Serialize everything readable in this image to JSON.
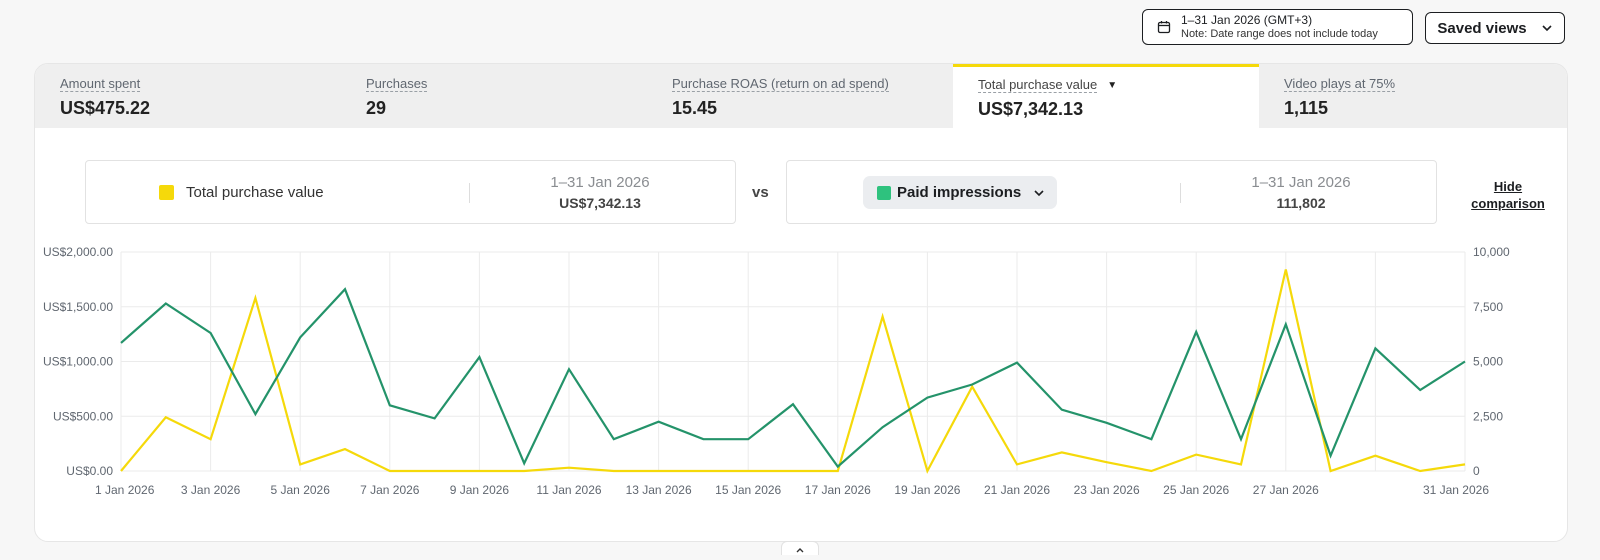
{
  "date_picker": {
    "range": "1–31 Jan 2026 (GMT+3)",
    "note": "Note: Date range does not include today"
  },
  "saved_views": {
    "label": "Saved views"
  },
  "metrics": [
    {
      "label": "Amount spent",
      "value": "US$475.22"
    },
    {
      "label": "Purchases",
      "value": "29"
    },
    {
      "label": "Purchase ROAS (return on ad spend)",
      "value": "15.45"
    },
    {
      "label": "Total purchase value",
      "value": "US$7,342.13"
    },
    {
      "label": "Video plays at 75%",
      "value": "1,115"
    }
  ],
  "comparison": {
    "primary": {
      "name": "Total purchase value",
      "range": "1–31 Jan 2026",
      "value": "US$7,342.13",
      "color": "#f5d90a"
    },
    "vs_label": "vs",
    "secondary": {
      "name": "Paid impressions",
      "range": "1–31 Jan 2026",
      "value": "111,802",
      "color": "#2ec27e"
    },
    "hide_link": [
      "Hide",
      "comparison"
    ]
  },
  "chart_data": {
    "type": "line",
    "x": [
      "1 Jan",
      "2 Jan",
      "3 Jan",
      "4 Jan",
      "5 Jan",
      "6 Jan",
      "7 Jan",
      "8 Jan",
      "9 Jan",
      "10 Jan",
      "11 Jan",
      "12 Jan",
      "13 Jan",
      "14 Jan",
      "15 Jan",
      "16 Jan",
      "17 Jan",
      "18 Jan",
      "19 Jan",
      "20 Jan",
      "21 Jan",
      "22 Jan",
      "23 Jan",
      "24 Jan",
      "25 Jan",
      "26 Jan",
      "27 Jan",
      "28 Jan",
      "29 Jan",
      "30 Jan",
      "31 Jan"
    ],
    "x_tick_labels": [
      "1 Jan 2026",
      "3 Jan 2026",
      "5 Jan 2026",
      "7 Jan 2026",
      "9 Jan 2026",
      "11 Jan 2026",
      "13 Jan 2026",
      "15 Jan 2026",
      "17 Jan 2026",
      "19 Jan 2026",
      "21 Jan 2026",
      "23 Jan 2026",
      "25 Jan 2026",
      "27 Jan 2026",
      "31 Jan 2026"
    ],
    "y_left": {
      "ylim": [
        0,
        2000
      ],
      "ticks": [
        "US$0.00",
        "US$500.00",
        "US$1,000.00",
        "US$1,500.00",
        "US$2,000.00"
      ]
    },
    "y_right": {
      "ylim": [
        0,
        10000
      ],
      "ticks": [
        "0",
        "2,500",
        "5,000",
        "7,500",
        "10,000"
      ]
    },
    "series": [
      {
        "name": "Total purchase value",
        "axis": "left",
        "color": "#f5d90a",
        "values": [
          0,
          490,
          290,
          1580,
          60,
          200,
          0,
          0,
          0,
          0,
          30,
          0,
          0,
          0,
          0,
          0,
          0,
          1410,
          0,
          770,
          60,
          170,
          80,
          0,
          150,
          60,
          1840,
          0,
          140,
          0,
          60
        ]
      },
      {
        "name": "Paid impressions",
        "axis": "right",
        "color": "#24936a",
        "values": [
          5850,
          7650,
          6300,
          2600,
          6100,
          8300,
          3000,
          2400,
          5200,
          350,
          4650,
          1450,
          2250,
          1450,
          1450,
          3050,
          200,
          2000,
          3350,
          3950,
          4950,
          2800,
          2200,
          1450,
          6350,
          1450,
          6700,
          700,
          5600,
          3700,
          5000
        ]
      }
    ],
    "grid": true
  }
}
